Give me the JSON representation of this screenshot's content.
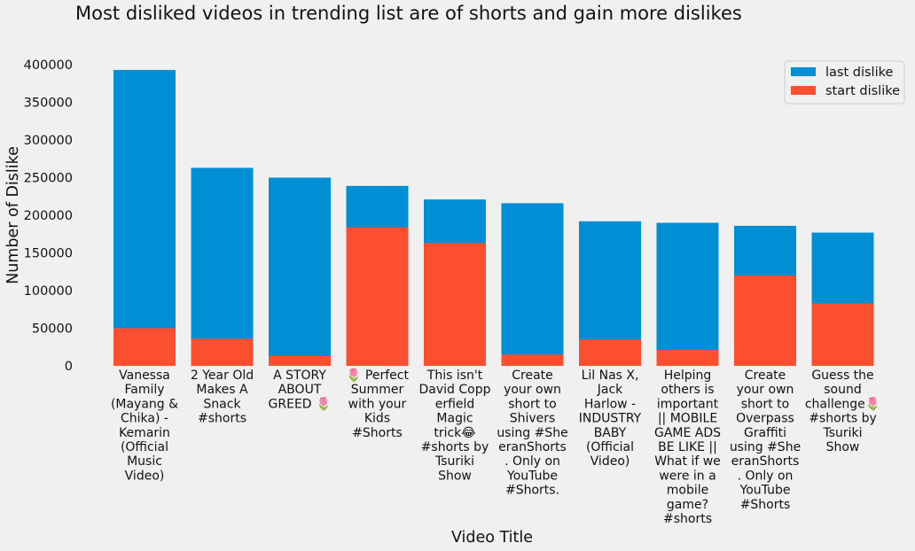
{
  "chart_data": {
    "type": "bar",
    "stacking": "overlay",
    "title": "Most disliked videos in trending list are of shorts and gain more dislikes",
    "xlabel": "Video Title",
    "ylabel": "Number of Dislike",
    "ylim": [
      0,
      400000
    ],
    "yticks": [
      0,
      50000,
      100000,
      150000,
      200000,
      250000,
      300000,
      350000,
      400000
    ],
    "ytick_labels": [
      "0",
      "50000",
      "100000",
      "150000",
      "200000",
      "250000",
      "300000",
      "350000",
      "400000"
    ],
    "grid": false,
    "legend_position": "top-right",
    "categories": [
      [
        "Vanessa",
        "Family",
        "(Mayang &",
        "Chika) -",
        "Kemarin",
        "(Official",
        "Music",
        "Video)"
      ],
      [
        "2 Year Old",
        "Makes A",
        "Snack",
        "#shorts"
      ],
      [
        "A STORY",
        "ABOUT",
        "GREED 🌷"
      ],
      [
        "🌷 Perfect",
        "Summer",
        "with your",
        "Kids",
        "#Shorts"
      ],
      [
        "This isn't",
        "David Copp",
        "erfield",
        "Magic",
        "trick😂",
        "#shorts by",
        "Tsuriki",
        "Show"
      ],
      [
        "Create",
        "your own",
        "short to",
        "Shivers",
        "using #She",
        "eranShorts",
        ". Only on",
        "YouTube",
        "#Shorts."
      ],
      [
        "Lil Nas X,",
        "Jack",
        "Harlow -",
        "INDUSTRY",
        "BABY",
        "(Official",
        "Video)"
      ],
      [
        "Helping",
        "others is",
        "important",
        "|| MOBILE",
        "GAME ADS",
        "BE LIKE ||",
        "What if we",
        "were in a",
        "mobile",
        "game?",
        "#shorts"
      ],
      [
        "Create",
        "your own",
        "short to",
        "Overpass",
        "Graffiti",
        "using #She",
        "eranShorts",
        ". Only on",
        "YouTube",
        "#Shorts"
      ],
      [
        "Guess the",
        "sound",
        "challenge🌷",
        "#shorts by",
        "Tsuriki",
        "Show"
      ]
    ],
    "series": [
      {
        "name": "last dislike",
        "color": "#008fd5",
        "values": [
          393000,
          263000,
          250000,
          239000,
          221000,
          216000,
          192000,
          190000,
          186000,
          177000
        ]
      },
      {
        "name": "start dislike",
        "color": "#fc4f30",
        "values": [
          50000,
          36000,
          13000,
          184000,
          163000,
          15000,
          35000,
          21000,
          120000,
          83000
        ]
      }
    ]
  }
}
